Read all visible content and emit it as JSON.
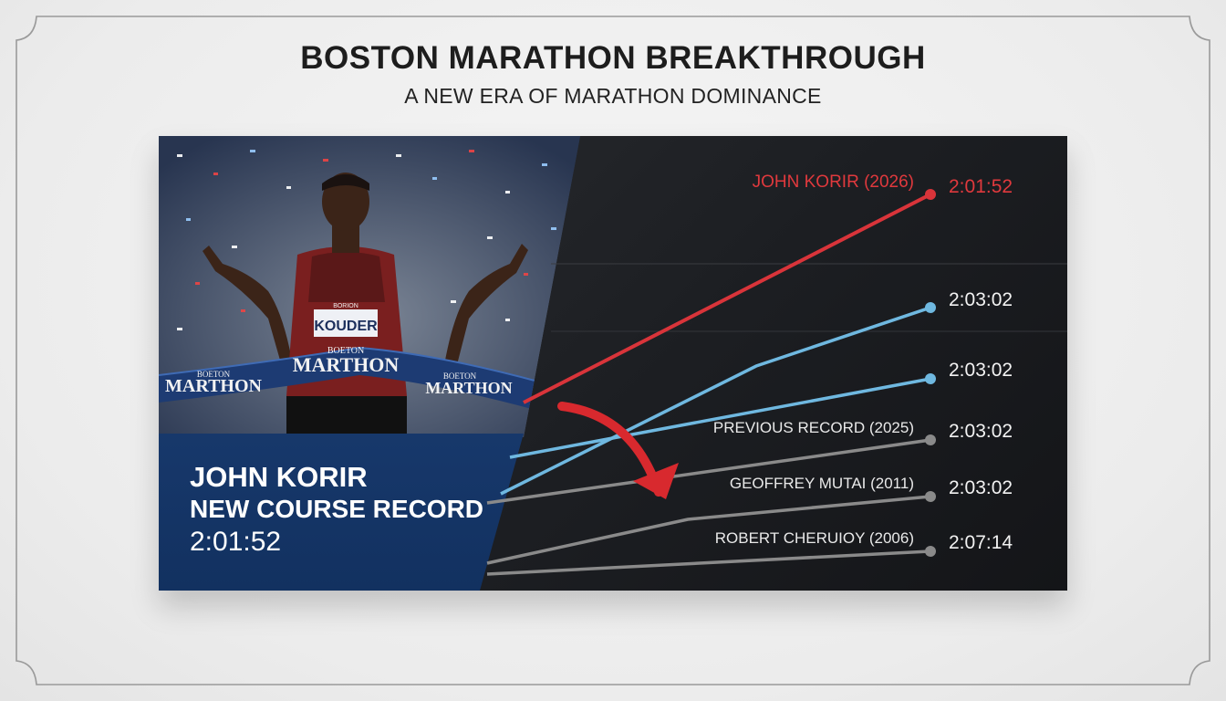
{
  "header": {
    "title": "BOSTON MARATHON BREAKTHROUGH",
    "subtitle": "A NEW ERA OF MARATHON DOMINANCE"
  },
  "photo": {
    "bib_text": "KOUDER",
    "bib_header": "BORION",
    "banner_text_center": "MARTHON",
    "banner_small_center": "BOETON",
    "banner_text_left": "MARTHON",
    "banner_small_left": "BOETON",
    "banner_text_right": "MARTHON",
    "banner_small_right": "BOETON"
  },
  "caption": {
    "name": "JOHN KORIR",
    "record": "NEW COURSE RECORD",
    "time": "2:01:52"
  },
  "chart": {
    "colors": {
      "highlight": "#d9343a",
      "blue": "#6fb8e0",
      "gray": "#8a8a8a",
      "arrow": "#d8292e"
    },
    "entries": [
      {
        "label": "JOHN KORIR (2026)",
        "time": "2:01:52",
        "color": "#d9343a"
      },
      {
        "label": "",
        "time": "2:03:02",
        "color": "#6fb8e0"
      },
      {
        "label": "",
        "time": "2:03:02",
        "color": "#6fb8e0"
      },
      {
        "label": "PREVIOUS RECORD (2025)",
        "time": "2:03:02",
        "color": "#8a8a8a"
      },
      {
        "label": "GEOFFREY MUTAI (2011)",
        "time": "2:03:02",
        "color": "#8a8a8a"
      },
      {
        "label": "ROBERT CHERUIOY (2006)",
        "time": "2:07:14",
        "color": "#8a8a8a"
      }
    ]
  }
}
